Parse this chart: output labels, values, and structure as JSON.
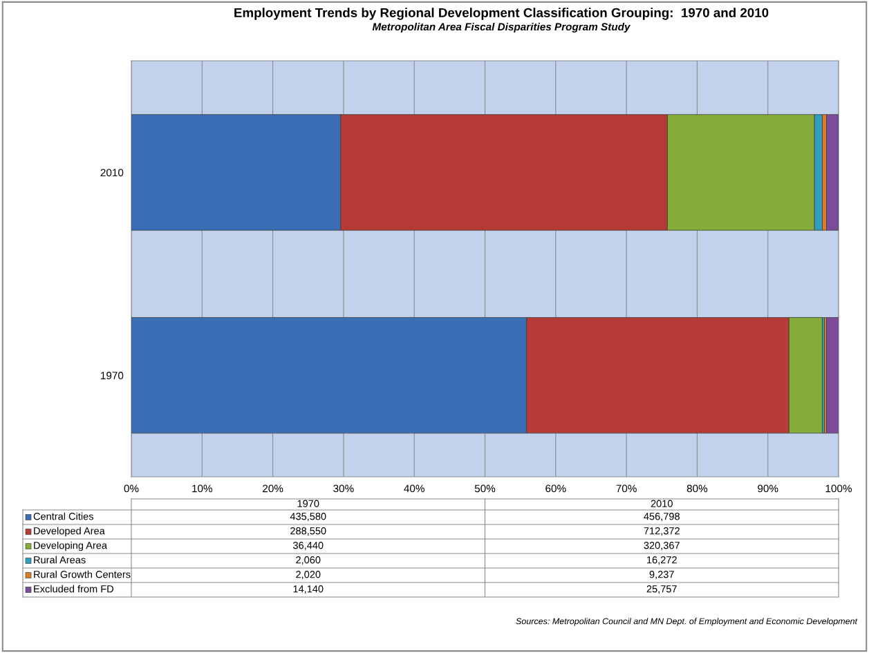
{
  "chart_data": {
    "type": "bar",
    "orientation": "horizontal",
    "stacked": true,
    "title": "Employment Trends by Regional Development Classification Grouping:  1970 and 2010",
    "subtitle": "Metropolitan Area Fiscal Disparities Program Study",
    "categories": [
      "2010",
      "1970"
    ],
    "series": [
      {
        "name": "Central Cities",
        "color": "#3a6fb5",
        "values": [
          29.6,
          55.9
        ]
      },
      {
        "name": "Developed Area",
        "color": "#b83a36",
        "values": [
          46.2,
          37.1
        ]
      },
      {
        "name": "Developing Area",
        "color": "#86ad3a",
        "values": [
          20.8,
          4.7
        ]
      },
      {
        "name": "Rural Areas",
        "color": "#2f9fbf",
        "values": [
          1.1,
          0.3
        ]
      },
      {
        "name": "Rural Growth Centers",
        "color": "#e07b25",
        "values": [
          0.6,
          0.3
        ]
      },
      {
        "name": "Excluded from FD",
        "color": "#7a4c9a",
        "values": [
          1.7,
          1.8
        ]
      }
    ],
    "xlim": [
      0,
      100
    ],
    "xticks": [
      {
        "value": 0,
        "label": "0%"
      },
      {
        "value": 10,
        "label": "10%"
      },
      {
        "value": 20,
        "label": "20%"
      },
      {
        "value": 30,
        "label": "30%"
      },
      {
        "value": 40,
        "label": "40%"
      },
      {
        "value": 50,
        "label": "50%"
      },
      {
        "value": 60,
        "label": "60%"
      },
      {
        "value": 70,
        "label": "70%"
      },
      {
        "value": 80,
        "label": "80%"
      },
      {
        "value": 90,
        "label": "90%"
      },
      {
        "value": 100,
        "label": "100%"
      }
    ],
    "grid": "x",
    "legend": "bottom",
    "annotations": [
      "435,580",
      "456,798",
      "288,550",
      "712,372",
      "36,440",
      "320,367",
      "2,060",
      "16,272",
      "2,020",
      "9,237",
      "14,140",
      "25,757",
      "Sources: Metropolitan Council and MN Dept. of Employment and Economic Development"
    ]
  }
}
